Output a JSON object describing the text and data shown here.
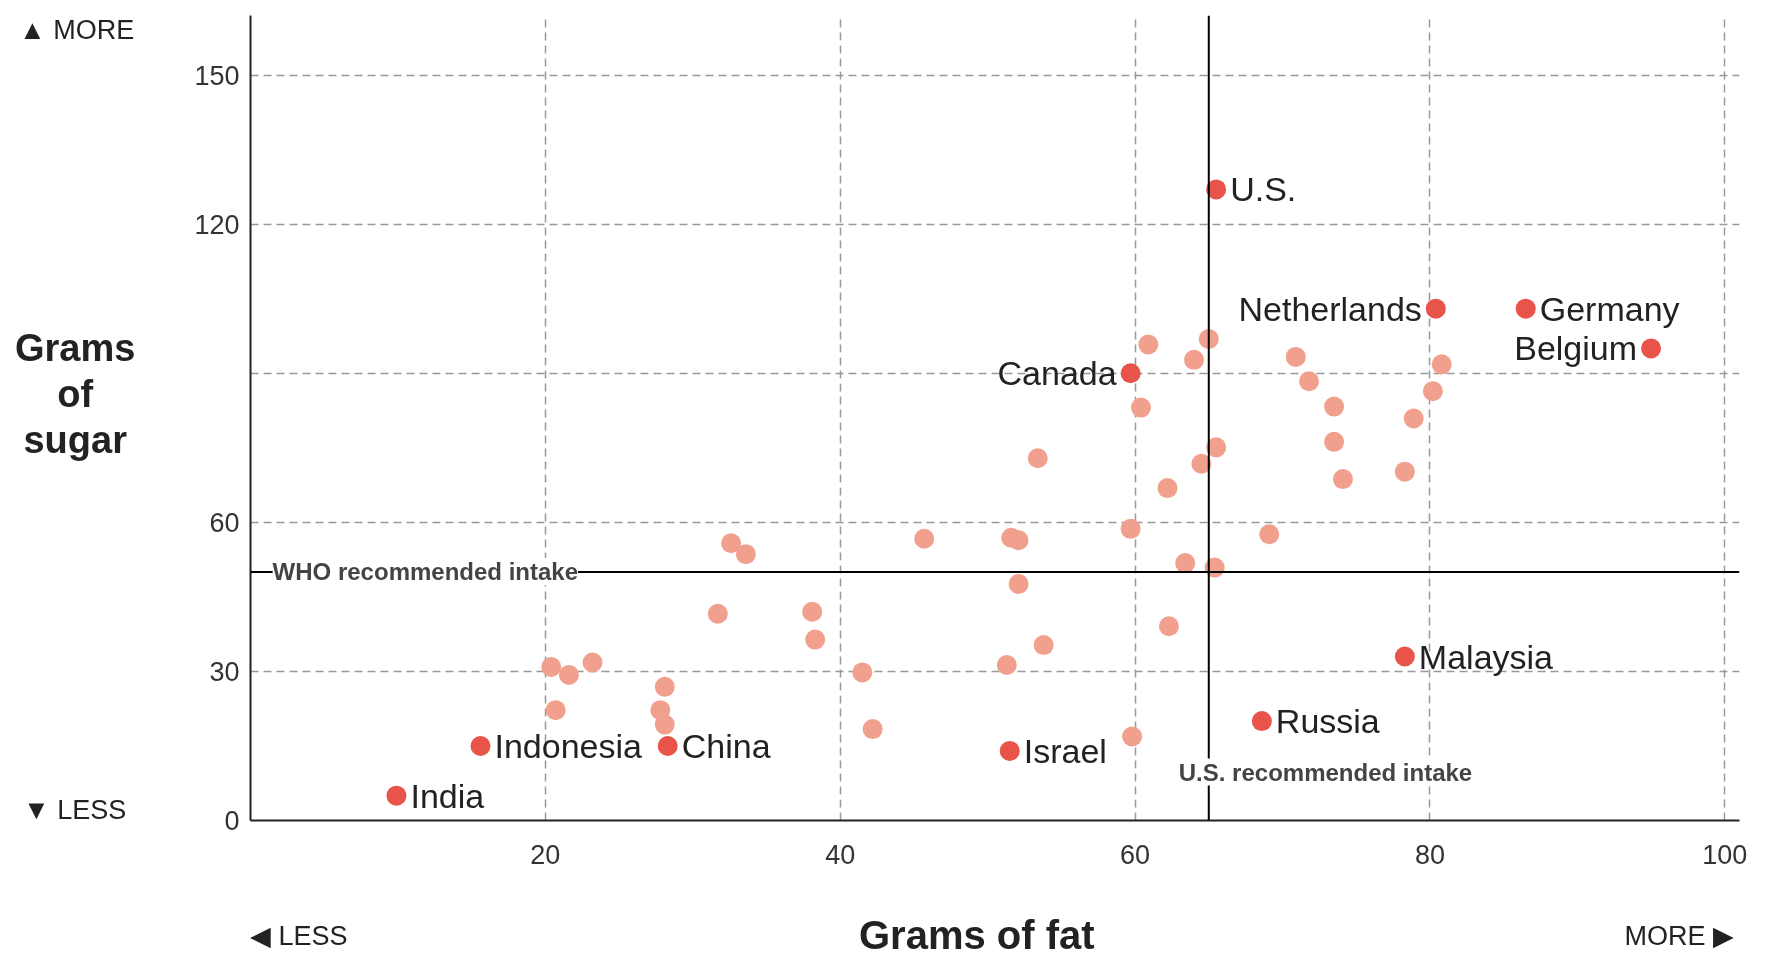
{
  "chart_data": {
    "type": "scatter",
    "xlabel": "Grams of fat",
    "ylabel": "Grams of sugar",
    "xlim": [
      0,
      101
    ],
    "ylim": [
      0,
      162
    ],
    "xticks": [
      20,
      40,
      60,
      80,
      100
    ],
    "yticks": [
      {
        "value": 0,
        "label": "0"
      },
      30,
      60,
      {
        "value": 90,
        "label": null
      },
      120,
      150
    ],
    "grid": true,
    "marker": "circle",
    "series": [
      {
        "color": "#f2a08e",
        "x": [
          60.9,
          65.0,
          64.0,
          70.9,
          71.8,
          80.8,
          80.2,
          60.4,
          73.5,
          78.9,
          73.5,
          65.5,
          53.4,
          64.5,
          74.1,
          78.3,
          62.2,
          59.7,
          69.1,
          45.7,
          51.6,
          52.1,
          32.6,
          33.6,
          63.4,
          65.4,
          52.1,
          38.1,
          31.7,
          38.3,
          62.3,
          53.8,
          51.3,
          41.5,
          20.4,
          21.6,
          23.2,
          28.1,
          20.7,
          27.8,
          28.1,
          42.2,
          59.8
        ],
        "values": [
          95.8,
          96.9,
          92.7,
          93.3,
          88.4,
          91.8,
          86.4,
          83.1,
          83.3,
          80.9,
          76.2,
          75.1,
          72.9,
          71.8,
          68.7,
          70.2,
          66.9,
          58.7,
          57.6,
          56.7,
          56.9,
          56.4,
          55.8,
          53.6,
          51.8,
          50.9,
          47.6,
          42.0,
          41.6,
          36.4,
          39.1,
          35.3,
          31.3,
          29.8,
          30.9,
          29.3,
          31.8,
          26.9,
          22.2,
          22.2,
          19.3,
          18.4,
          16.9
        ]
      },
      {
        "color": "#e8534a",
        "x": [
          65.5,
          80.4,
          86.5,
          95.0,
          59.7,
          78.3,
          68.6,
          51.5,
          28.3,
          15.6,
          9.9
        ],
        "values": [
          127,
          103,
          103,
          95,
          90,
          33,
          20,
          14,
          15,
          15,
          5
        ],
        "value_labels": [
          "U.S.",
          "Netherlands",
          "Germany",
          "Belgium",
          "Canada",
          "Malaysia",
          "Russia",
          "Israel",
          "China",
          "Indonesia",
          "India"
        ]
      }
    ],
    "ref_lines": [
      {
        "axis": "y",
        "value": 50,
        "label": "WHO recommended intake",
        "color": "#000000"
      },
      {
        "axis": "x",
        "value": 65,
        "label": "U.S. recommended intake",
        "color": "#000000"
      }
    ],
    "annotations": [
      "▲ MORE",
      "▼ LESS",
      "◀ LESS",
      "MORE ▶"
    ]
  }
}
